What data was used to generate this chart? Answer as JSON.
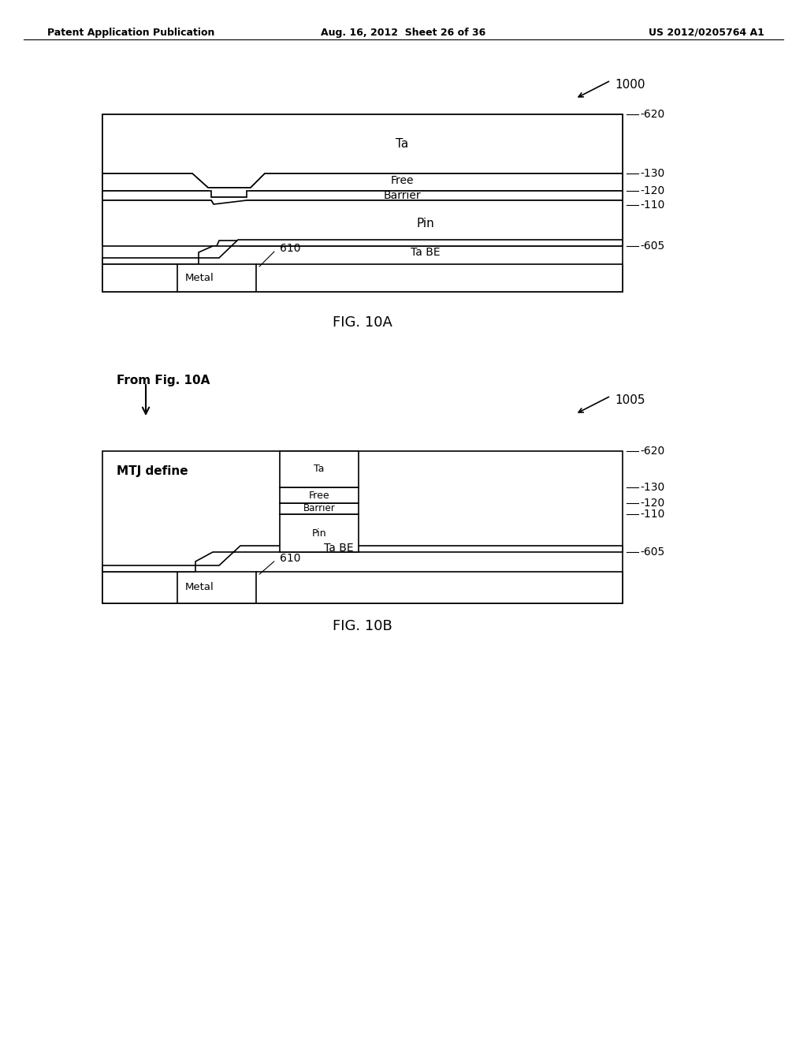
{
  "bg_color": "#ffffff",
  "header_left": "Patent Application Publication",
  "header_mid": "Aug. 16, 2012  Sheet 26 of 36",
  "header_right": "US 2012/0205764 A1",
  "fig10a_label": "FIG. 10A",
  "fig10b_label": "FIG. 10B",
  "fig10a_ref": "1000",
  "fig10b_ref": "1005",
  "fig10b_from": "From Fig. 10A",
  "fig10b_mtj": "MTJ define",
  "layer_labels_10a": {
    "Ta": "Ta",
    "Free": "Free",
    "Barrier": "Barrier",
    "Pin": "Pin",
    "TaBE": "Ta BE",
    "Metal": "Metal"
  },
  "ref_nums_10a": {
    "620": "620",
    "130": "130",
    "120": "120",
    "110": "110",
    "605": "605",
    "610": "610"
  },
  "line_color": "#000000",
  "line_width": 1.2
}
